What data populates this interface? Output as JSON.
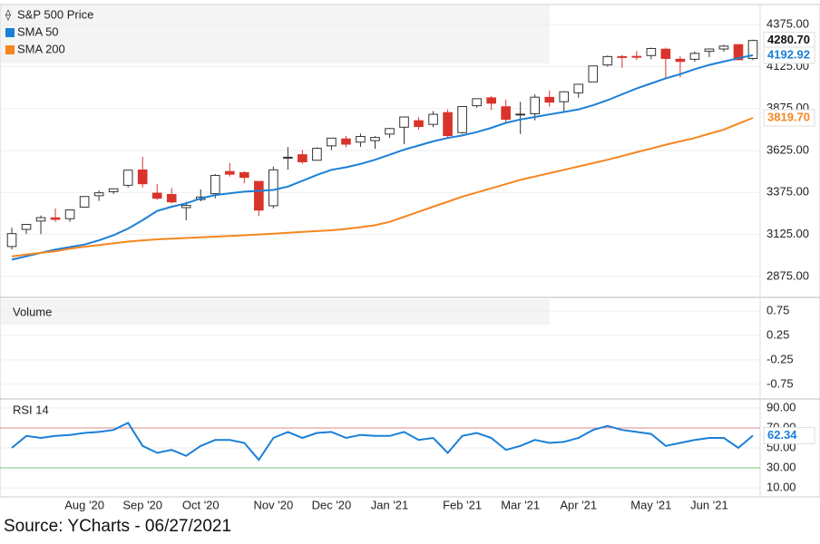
{
  "chart_data": [
    {
      "type": "candlestick",
      "categories": [
        null,
        null,
        null,
        null,
        null,
        "Aug '20",
        null,
        null,
        null,
        "Sep '20",
        null,
        null,
        null,
        "Oct '20",
        null,
        null,
        null,
        null,
        "Nov '20",
        null,
        null,
        null,
        "Dec '20",
        null,
        null,
        null,
        "Jan '21",
        null,
        null,
        null,
        null,
        "Feb '21",
        null,
        null,
        null,
        "Mar '21",
        null,
        null,
        null,
        "Apr '21",
        null,
        null,
        null,
        null,
        "May '21",
        null,
        null,
        null,
        "Jun '21",
        null,
        null,
        null
      ],
      "series": [
        {
          "name": "S&P 500 Price",
          "up_color": "#ffffff",
          "up_stroke": "#333333",
          "down_color": "#d9342b",
          "open": [
            3053,
            3155,
            3205,
            3224,
            3219,
            3288,
            3356,
            3380,
            3418,
            3509,
            3371,
            3363,
            3285,
            3333,
            3368,
            3500,
            3493,
            3441,
            3296,
            3583,
            3600,
            3567,
            3653,
            3694,
            3675,
            3684,
            3723,
            3764,
            3803,
            3781,
            3851,
            3732,
            3892,
            3939,
            3886,
            3842,
            3844,
            3942,
            3916,
            3969,
            4034,
            4135,
            4185,
            4186,
            4191,
            4229,
            4169,
            4169,
            4216,
            4230,
            4256,
            4174
          ],
          "high": [
            3165,
            3185,
            3238,
            3280,
            3272,
            3352,
            3387,
            3399,
            3509,
            3588,
            3425,
            3402,
            3320,
            3393,
            3485,
            3550,
            3502,
            3441,
            3529,
            3646,
            3628,
            3644,
            3699,
            3712,
            3726,
            3711,
            3760,
            3827,
            3824,
            3860,
            3870,
            3887,
            3935,
            3950,
            3928,
            3915,
            3960,
            3983,
            3978,
            4020,
            4130,
            4191,
            4194,
            4218,
            4238,
            4238,
            4188,
            4214,
            4234,
            4256,
            4258,
            4286
          ],
          "low": [
            3036,
            3128,
            3127,
            3200,
            3200,
            3284,
            3325,
            3365,
            3405,
            3405,
            3330,
            3310,
            3209,
            3323,
            3340,
            3470,
            3430,
            3234,
            3280,
            3511,
            3546,
            3565,
            3628,
            3645,
            3647,
            3636,
            3700,
            3663,
            3749,
            3764,
            3694,
            3725,
            3880,
            3866,
            3789,
            3723,
            3805,
            3886,
            3853,
            3939,
            4034,
            4125,
            4118,
            4164,
            4169,
            4057,
            4061,
            4155,
            4182,
            4214,
            4165,
            4164
          ],
          "close": [
            3130,
            3185,
            3225,
            3215,
            3271,
            3351,
            3373,
            3397,
            3508,
            3427,
            3341,
            3319,
            3298,
            3348,
            3477,
            3484,
            3465,
            3270,
            3510,
            3585,
            3558,
            3638,
            3699,
            3663,
            3709,
            3703,
            3756,
            3825,
            3768,
            3841,
            3714,
            3887,
            3934,
            3907,
            3811,
            3842,
            3943,
            3913,
            3975,
            4020,
            4129,
            4185,
            4180,
            4181,
            4233,
            4174,
            4156,
            4204,
            4230,
            4247,
            4166,
            4280.7
          ],
          "value_labels": [
            null,
            null,
            null,
            null,
            null,
            null,
            null,
            null,
            null,
            null,
            null,
            null,
            null,
            null,
            null,
            null,
            null,
            null,
            null,
            null,
            null,
            null,
            null,
            null,
            null,
            null,
            null,
            null,
            null,
            null,
            null,
            null,
            null,
            null,
            null,
            null,
            null,
            null,
            null,
            null,
            null,
            null,
            null,
            null,
            null,
            null,
            null,
            null,
            null,
            null,
            null,
            "4280.70"
          ]
        },
        {
          "name": "SMA 50",
          "color": "#1b7fd8",
          "values": [
            2975,
            2995,
            3015,
            3035,
            3050,
            3065,
            3090,
            3120,
            3160,
            3210,
            3265,
            3290,
            3310,
            3340,
            3360,
            3370,
            3380,
            3385,
            3390,
            3410,
            3445,
            3480,
            3510,
            3525,
            3545,
            3570,
            3600,
            3630,
            3655,
            3680,
            3700,
            3715,
            3735,
            3760,
            3790,
            3810,
            3825,
            3840,
            3855,
            3870,
            3895,
            3925,
            3960,
            3995,
            4025,
            4055,
            4080,
            4110,
            4135,
            4155,
            4175,
            4192.92
          ],
          "value_labels": [
            null,
            null,
            null,
            null,
            null,
            null,
            null,
            null,
            null,
            null,
            null,
            null,
            null,
            null,
            null,
            null,
            null,
            null,
            null,
            null,
            null,
            null,
            null,
            null,
            null,
            null,
            null,
            null,
            null,
            null,
            null,
            null,
            null,
            null,
            null,
            null,
            null,
            null,
            null,
            null,
            null,
            null,
            null,
            null,
            null,
            null,
            null,
            null,
            null,
            null,
            null,
            "4192.92"
          ]
        },
        {
          "name": "SMA 200",
          "color": "#f5861f",
          "values": [
            2995,
            3005,
            3015,
            3025,
            3040,
            3052,
            3062,
            3072,
            3082,
            3090,
            3096,
            3100,
            3104,
            3108,
            3112,
            3116,
            3120,
            3125,
            3130,
            3135,
            3140,
            3145,
            3150,
            3158,
            3168,
            3180,
            3200,
            3230,
            3260,
            3290,
            3320,
            3350,
            3375,
            3400,
            3425,
            3450,
            3470,
            3490,
            3510,
            3530,
            3550,
            3570,
            3592,
            3615,
            3637,
            3660,
            3680,
            3700,
            3725,
            3750,
            3785,
            3819.7
          ],
          "value_labels": [
            null,
            null,
            null,
            null,
            null,
            null,
            null,
            null,
            null,
            null,
            null,
            null,
            null,
            null,
            null,
            null,
            null,
            null,
            null,
            null,
            null,
            null,
            null,
            null,
            null,
            null,
            null,
            null,
            null,
            null,
            null,
            null,
            null,
            null,
            null,
            null,
            null,
            null,
            null,
            null,
            null,
            null,
            null,
            null,
            null,
            null,
            null,
            null,
            null,
            null,
            null,
            "3819.70"
          ]
        }
      ],
      "ylim": [
        2750,
        4495
      ],
      "yticks": [
        {
          "value": 4375,
          "label": "4375.00"
        },
        {
          "value": 4125,
          "label": "4125.00"
        },
        {
          "value": 3875,
          "label": "3875.00"
        },
        {
          "value": 3625,
          "label": "3625.00"
        },
        {
          "value": 3375,
          "label": "3375.00"
        },
        {
          "value": 3125,
          "label": "3125.00"
        },
        {
          "value": 2875,
          "label": "2875.00"
        }
      ],
      "grid": true
    },
    {
      "type": "bar",
      "title": "Volume",
      "ylim": [
        -1.05,
        1.03
      ],
      "yticks": [
        0.75,
        0.25,
        -0.25,
        -0.75
      ],
      "grid": true
    },
    {
      "type": "line",
      "series": [
        {
          "name": "RSI 14",
          "color": "#1b7fd8",
          "values": [
            50,
            62,
            60,
            62,
            63,
            65,
            66,
            68,
            75,
            52,
            45,
            48,
            42,
            52,
            58,
            58,
            55,
            38,
            60,
            66,
            60,
            65,
            66,
            60,
            63,
            62,
            62,
            66,
            58,
            60,
            45,
            62,
            65,
            60,
            48,
            52,
            58,
            55,
            56,
            60,
            68,
            72,
            68,
            66,
            64,
            52,
            55,
            58,
            60,
            60,
            50,
            62.34
          ],
          "value_labels": [
            null,
            null,
            null,
            null,
            null,
            null,
            null,
            null,
            null,
            null,
            null,
            null,
            null,
            null,
            null,
            null,
            null,
            null,
            null,
            null,
            null,
            null,
            null,
            null,
            null,
            null,
            null,
            null,
            null,
            null,
            null,
            null,
            null,
            null,
            null,
            null,
            null,
            null,
            null,
            null,
            null,
            null,
            null,
            null,
            null,
            null,
            null,
            null,
            null,
            null,
            null,
            "62.34"
          ]
        }
      ],
      "reference_lines": [
        {
          "value": 70,
          "color": "#e08a8a"
        },
        {
          "value": 30,
          "color": "#7cc47c"
        }
      ],
      "ylim": [
        1,
        99
      ],
      "yticks": [
        {
          "value": 90,
          "label": "90.00"
        },
        {
          "value": 70,
          "label": "70.00"
        },
        {
          "value": 50,
          "label": "50.00"
        },
        {
          "value": 30,
          "label": "30.00"
        },
        {
          "value": 10,
          "label": "10.00"
        }
      ],
      "grid": true
    }
  ],
  "source": "Source: YCharts - 06/27/2021"
}
